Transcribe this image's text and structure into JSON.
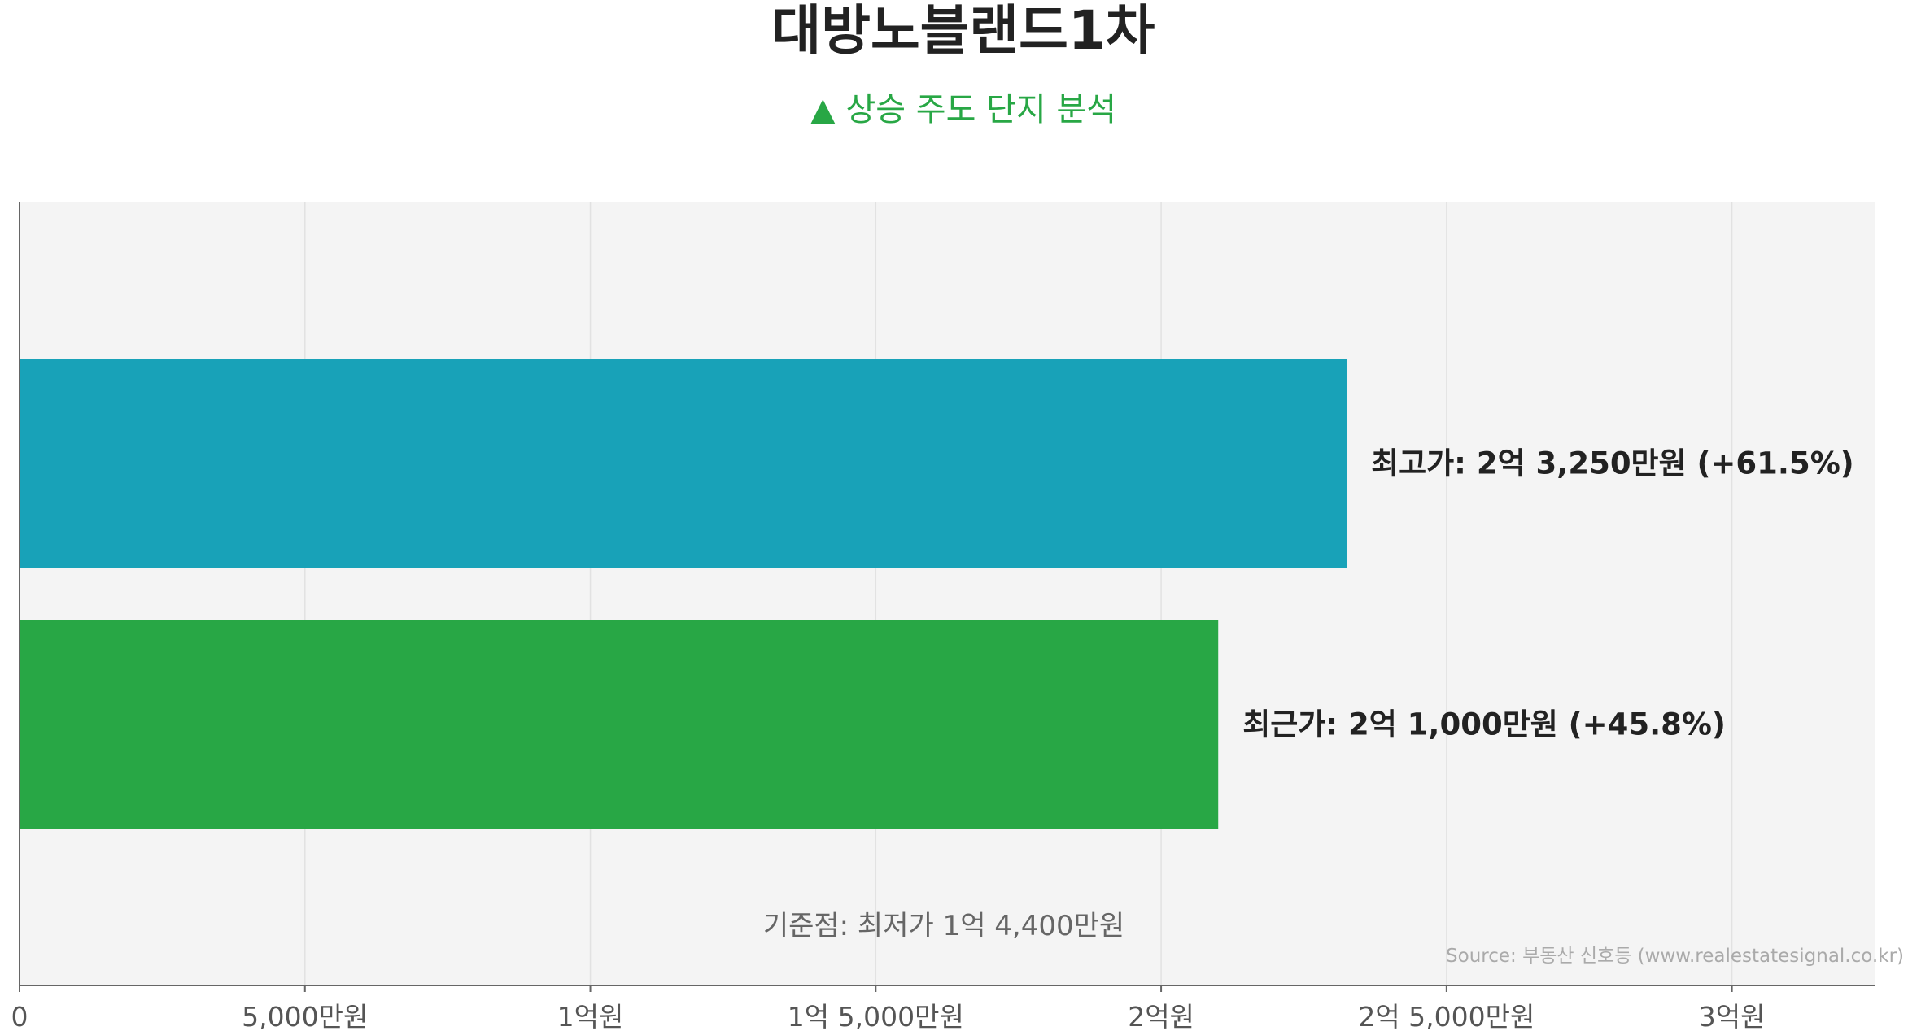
{
  "title": "대방노블랜드1차",
  "subtitle": {
    "icon": "up-triangle-icon",
    "text": "▲ 상승 주도 단지 분석"
  },
  "colors": {
    "plot_background": "#f4f4f4",
    "grid": "#e2e2e2",
    "axis": "#666666",
    "highest": "#18a2b8",
    "recent": "#28a745",
    "subtitle": "#28a745"
  },
  "chart_data": {
    "type": "bar",
    "orientation": "horizontal",
    "unit": "만원",
    "xlim": [
      0,
      32500
    ],
    "grid": true,
    "bars": [
      {
        "key": "highest",
        "value": 23250,
        "label": "최고가: 2억 3,250만원 (+61.5%)",
        "color": "#18a2b8"
      },
      {
        "key": "recent",
        "value": 21000,
        "label": "최근가: 2억 1,000만원 (+45.8%)",
        "color": "#28a745"
      }
    ],
    "x_ticks": [
      {
        "value": 0,
        "label": "0"
      },
      {
        "value": 5000,
        "label": "5,000만원"
      },
      {
        "value": 10000,
        "label": "1억원"
      },
      {
        "value": 15000,
        "label": "1억 5,000만원"
      },
      {
        "value": 20000,
        "label": "2억원"
      },
      {
        "value": 25000,
        "label": "2억 5,000만원"
      },
      {
        "value": 30000,
        "label": "3억원"
      }
    ],
    "baseline": {
      "value": 14400,
      "label": "기준점: 최저가 1억 4,400만원"
    }
  },
  "source": "Source: 부동산 신호등 (www.realestatesignal.co.kr)"
}
